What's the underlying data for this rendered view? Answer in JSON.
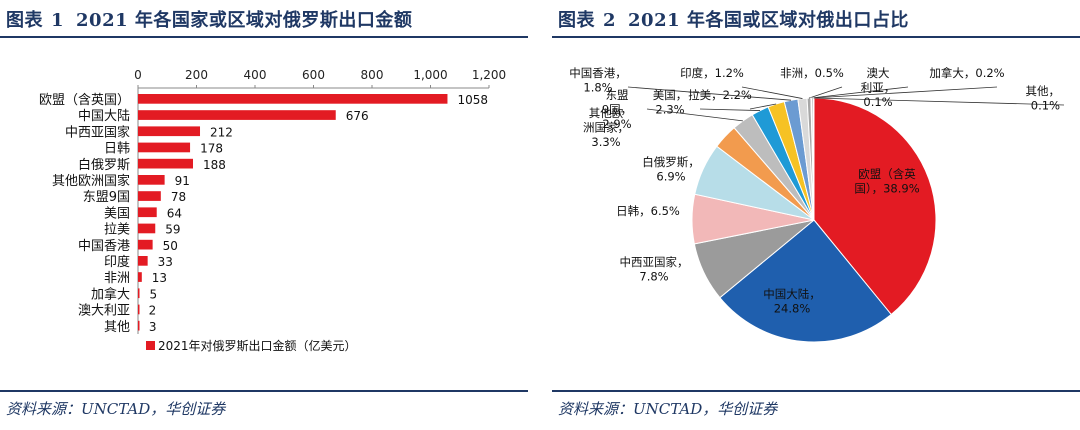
{
  "left": {
    "fig_label": "图表",
    "fig_num": "1",
    "title": "2021 年各国家或区域对俄罗斯出口金额",
    "source": "资料来源：UNCTAD，华创证券"
  },
  "right": {
    "fig_label": "图表",
    "fig_num": "2",
    "title": "2021 年各国或区域对俄出口占比",
    "source": "资料来源：UNCTAD，华创证券"
  },
  "colors": {
    "bar": "#e31b23",
    "title_blue": "#1f3864",
    "pie": [
      "#e31b23",
      "#1f5fae",
      "#9b9b9b",
      "#f2b8b8",
      "#b7dde8",
      "#f29b4e",
      "#bdbdbd",
      "#1f9ad6",
      "#f6c224",
      "#6b9bd2",
      "#d9d9d9",
      "#a6a6a6",
      "#8c8c8c",
      "#7f7f7f",
      "#595959"
    ]
  },
  "chart_data": [
    {
      "type": "bar",
      "orientation": "horizontal",
      "categories": [
        "欧盟（含英国）",
        "中国大陆",
        "中西亚国家",
        "日韩",
        "白俄罗斯",
        "其他欧洲国家",
        "东盟9国",
        "美国",
        "拉美",
        "中国香港",
        "印度",
        "非洲",
        "加拿大",
        "澳大利亚",
        "其他"
      ],
      "series": [
        {
          "name": "2021年对俄罗斯出口金额（亿美元）",
          "values": [
            1058,
            676,
            212,
            178,
            188,
            91,
            78,
            64,
            59,
            50,
            33,
            13,
            5,
            2,
            3
          ]
        }
      ],
      "xlim": [
        0,
        1200
      ],
      "xticks": [
        "0",
        "200",
        "400",
        "600",
        "800",
        "1,000",
        "1,200"
      ],
      "legend": "bottom-left"
    },
    {
      "type": "pie",
      "categories": [
        "欧盟（含英国）",
        "中国大陆",
        "中西亚国家",
        "日韩",
        "白俄罗斯",
        "其他欧洲国家",
        "东盟9国",
        "美国",
        "拉美",
        "中国香港",
        "印度",
        "非洲",
        "澳大利亚",
        "加拿大",
        "其他"
      ],
      "values": [
        38.9,
        24.8,
        7.8,
        6.5,
        6.9,
        3.3,
        2.9,
        2.3,
        2.2,
        1.8,
        1.2,
        0.5,
        0.1,
        0.2,
        0.1
      ],
      "labels": [
        [
          "欧盟（含英",
          "国），38.9%"
        ],
        [
          "中国大陆，",
          "24.8%"
        ],
        [
          "中西亚国家，",
          "7.8%"
        ],
        [
          "日韩，6.5%"
        ],
        [
          "白俄罗斯，",
          "6.9%"
        ],
        [
          "其他欧",
          "洲国家，",
          "3.3%"
        ],
        [
          "东盟",
          "9国，",
          "2.9%"
        ],
        [
          "美国，",
          "2.3%"
        ],
        [
          "拉美，2.2%"
        ],
        [
          "中国香港，",
          "1.8%"
        ],
        [
          "印度，1.2%"
        ],
        [
          "非洲，0.5%"
        ],
        [
          "澳大",
          "利亚，",
          "0.1%"
        ],
        [
          "加拿大，0.2%"
        ],
        [
          "其他，",
          "0.1%"
        ]
      ]
    }
  ]
}
